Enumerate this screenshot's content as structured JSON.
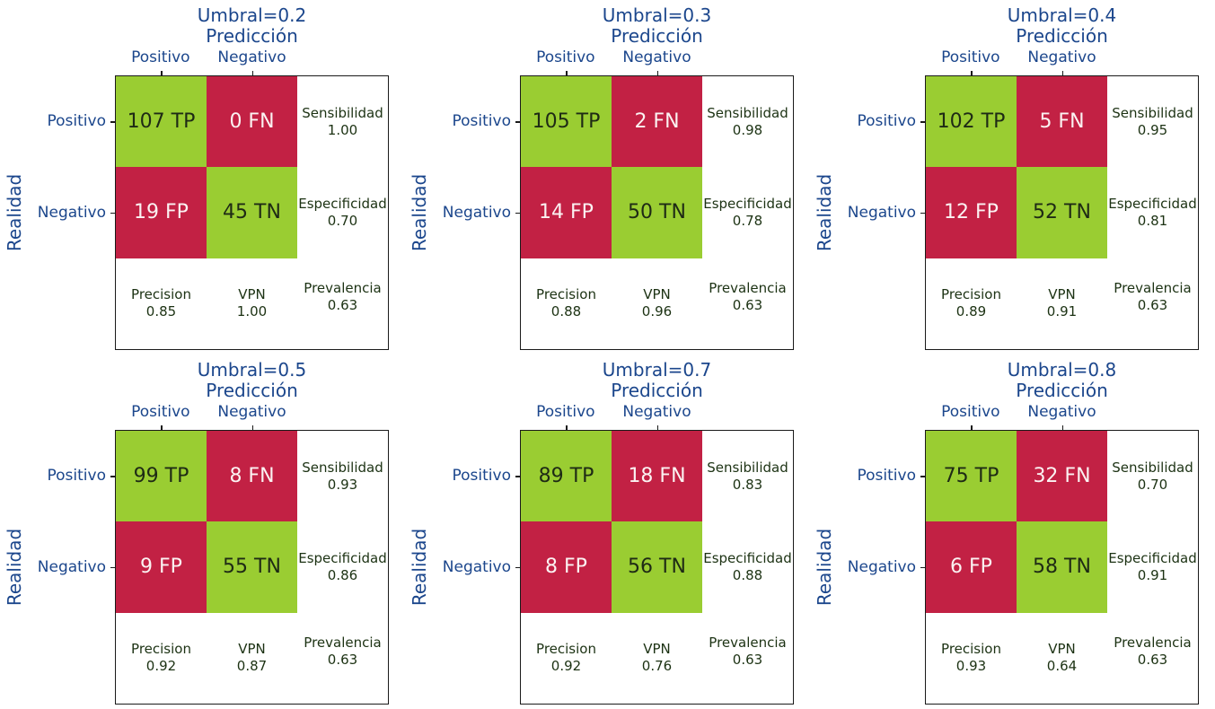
{
  "axis": {
    "pred_label": "Predicción",
    "real_label": "Realidad",
    "col_labels": [
      "Positivo",
      "Negativo"
    ],
    "row_labels": [
      "Positivo",
      "Negativo"
    ]
  },
  "stat_labels": {
    "sensibilidad": "Sensibilidad",
    "especificidad": "Especificidad",
    "precision": "Precision",
    "vpn": "VPN",
    "prevalencia": "Prevalencia"
  },
  "colors": {
    "positive_cell_green": "#9ACD32",
    "negative_cell_red": "#C22144",
    "axis_label_blue": "#1B468C"
  },
  "panels": [
    {
      "title": "Umbral=0.2",
      "tp": "107 TP",
      "fn": "0 FN",
      "fp": "19 FP",
      "tn": "45 TN",
      "sens": "1.00",
      "espec": "0.70",
      "prec": "0.85",
      "vpn": "1.00",
      "preval": "0.63"
    },
    {
      "title": "Umbral=0.3",
      "tp": "105 TP",
      "fn": "2 FN",
      "fp": "14 FP",
      "tn": "50 TN",
      "sens": "0.98",
      "espec": "0.78",
      "prec": "0.88",
      "vpn": "0.96",
      "preval": "0.63"
    },
    {
      "title": "Umbral=0.4",
      "tp": "102 TP",
      "fn": "5 FN",
      "fp": "12 FP",
      "tn": "52 TN",
      "sens": "0.95",
      "espec": "0.81",
      "prec": "0.89",
      "vpn": "0.91",
      "preval": "0.63"
    },
    {
      "title": "Umbral=0.5",
      "tp": "99 TP",
      "fn": "8 FN",
      "fp": "9 FP",
      "tn": "55 TN",
      "sens": "0.93",
      "espec": "0.86",
      "prec": "0.92",
      "vpn": "0.87",
      "preval": "0.63"
    },
    {
      "title": "Umbral=0.7",
      "tp": "89 TP",
      "fn": "18 FN",
      "fp": "8 FP",
      "tn": "56 TN",
      "sens": "0.83",
      "espec": "0.88",
      "prec": "0.92",
      "vpn": "0.76",
      "preval": "0.63"
    },
    {
      "title": "Umbral=0.8",
      "tp": "75 TP",
      "fn": "32 FN",
      "fp": "6 FP",
      "tn": "58 TN",
      "sens": "0.70",
      "espec": "0.91",
      "prec": "0.93",
      "vpn": "0.64",
      "preval": "0.63"
    }
  ],
  "chart_data": [
    {
      "type": "heatmap",
      "title": "Umbral=0.2",
      "x_label": "Predicción",
      "y_label": "Realidad",
      "x_categories": [
        "Positivo",
        "Negativo"
      ],
      "y_categories": [
        "Positivo",
        "Negativo"
      ],
      "matrix": [
        [
          107,
          0
        ],
        [
          19,
          45
        ]
      ],
      "cell_labels": [
        [
          "107 TP",
          "0 FN"
        ],
        [
          "19 FP",
          "45 TN"
        ]
      ],
      "stats": {
        "Sensibilidad": 1.0,
        "Especificidad": 0.7,
        "Precision": 0.85,
        "VPN": 1.0,
        "Prevalencia": 0.63
      }
    },
    {
      "type": "heatmap",
      "title": "Umbral=0.3",
      "x_label": "Predicción",
      "y_label": "Realidad",
      "x_categories": [
        "Positivo",
        "Negativo"
      ],
      "y_categories": [
        "Positivo",
        "Negativo"
      ],
      "matrix": [
        [
          105,
          2
        ],
        [
          14,
          50
        ]
      ],
      "cell_labels": [
        [
          "105 TP",
          "2 FN"
        ],
        [
          "14 FP",
          "50 TN"
        ]
      ],
      "stats": {
        "Sensibilidad": 0.98,
        "Especificidad": 0.78,
        "Precision": 0.88,
        "VPN": 0.96,
        "Prevalencia": 0.63
      }
    },
    {
      "type": "heatmap",
      "title": "Umbral=0.4",
      "x_label": "Predicción",
      "y_label": "Realidad",
      "x_categories": [
        "Positivo",
        "Negativo"
      ],
      "y_categories": [
        "Positivo",
        "Negativo"
      ],
      "matrix": [
        [
          102,
          5
        ],
        [
          12,
          52
        ]
      ],
      "cell_labels": [
        [
          "102 TP",
          "5 FN"
        ],
        [
          "12 FP",
          "52 TN"
        ]
      ],
      "stats": {
        "Sensibilidad": 0.95,
        "Especificidad": 0.81,
        "Precision": 0.89,
        "VPN": 0.91,
        "Prevalencia": 0.63
      }
    },
    {
      "type": "heatmap",
      "title": "Umbral=0.5",
      "x_label": "Predicción",
      "y_label": "Realidad",
      "x_categories": [
        "Positivo",
        "Negativo"
      ],
      "y_categories": [
        "Positivo",
        "Negativo"
      ],
      "matrix": [
        [
          99,
          8
        ],
        [
          9,
          55
        ]
      ],
      "cell_labels": [
        [
          "99 TP",
          "8 FN"
        ],
        [
          "9 FP",
          "55 TN"
        ]
      ],
      "stats": {
        "Sensibilidad": 0.93,
        "Especificidad": 0.86,
        "Precision": 0.92,
        "VPN": 0.87,
        "Prevalencia": 0.63
      }
    },
    {
      "type": "heatmap",
      "title": "Umbral=0.7",
      "x_label": "Predicción",
      "y_label": "Realidad",
      "x_categories": [
        "Positivo",
        "Negativo"
      ],
      "y_categories": [
        "Positivo",
        "Negativo"
      ],
      "matrix": [
        [
          89,
          18
        ],
        [
          8,
          56
        ]
      ],
      "cell_labels": [
        [
          "89 TP",
          "18 FN"
        ],
        [
          "8 FP",
          "56 TN"
        ]
      ],
      "stats": {
        "Sensibilidad": 0.83,
        "Especificidad": 0.88,
        "Precision": 0.92,
        "VPN": 0.76,
        "Prevalencia": 0.63
      }
    },
    {
      "type": "heatmap",
      "title": "Umbral=0.8",
      "x_label": "Predicción",
      "y_label": "Realidad",
      "x_categories": [
        "Positivo",
        "Negativo"
      ],
      "y_categories": [
        "Positivo",
        "Negativo"
      ],
      "matrix": [
        [
          75,
          32
        ],
        [
          6,
          58
        ]
      ],
      "cell_labels": [
        [
          "75 TP",
          "32 FN"
        ],
        [
          "6 FP",
          "58 TN"
        ]
      ],
      "stats": {
        "Sensibilidad": 0.7,
        "Especificidad": 0.91,
        "Precision": 0.93,
        "VPN": 0.64,
        "Prevalencia": 0.63
      }
    }
  ]
}
